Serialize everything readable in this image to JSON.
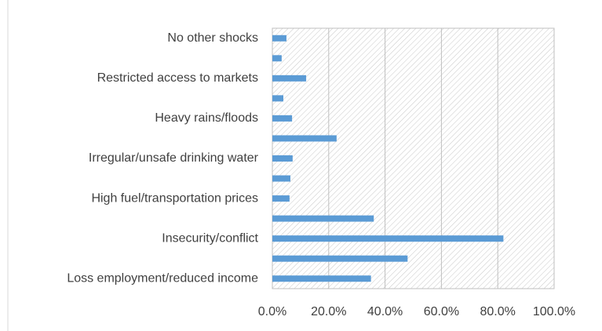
{
  "chart_data": {
    "type": "hbar",
    "categories": [
      "Loss employment/reduced income",
      null,
      "Insecurity/conflict",
      null,
      "High fuel/transportation prices",
      null,
      "Irregular/unsafe drinking water",
      null,
      "Heavy rains/floods",
      null,
      "Restricted access to markets",
      null,
      "No other shocks"
    ],
    "values": [
      35,
      48,
      82,
      36,
      6.1,
      6.4,
      7.2,
      22.8,
      7,
      3.9,
      12,
      3.3,
      5
    ],
    "color": "#5b9bd5",
    "xlim": [
      0,
      100
    ],
    "xticks": [
      {
        "value": 0,
        "label": "0.0%"
      },
      {
        "value": 20,
        "label": "20.0%"
      },
      {
        "value": 40,
        "label": "40.0%"
      },
      {
        "value": 60,
        "label": "60.0%"
      },
      {
        "value": 80,
        "label": "80.0%"
      },
      {
        "value": 100,
        "label": "100.0%"
      }
    ],
    "grid": true
  }
}
